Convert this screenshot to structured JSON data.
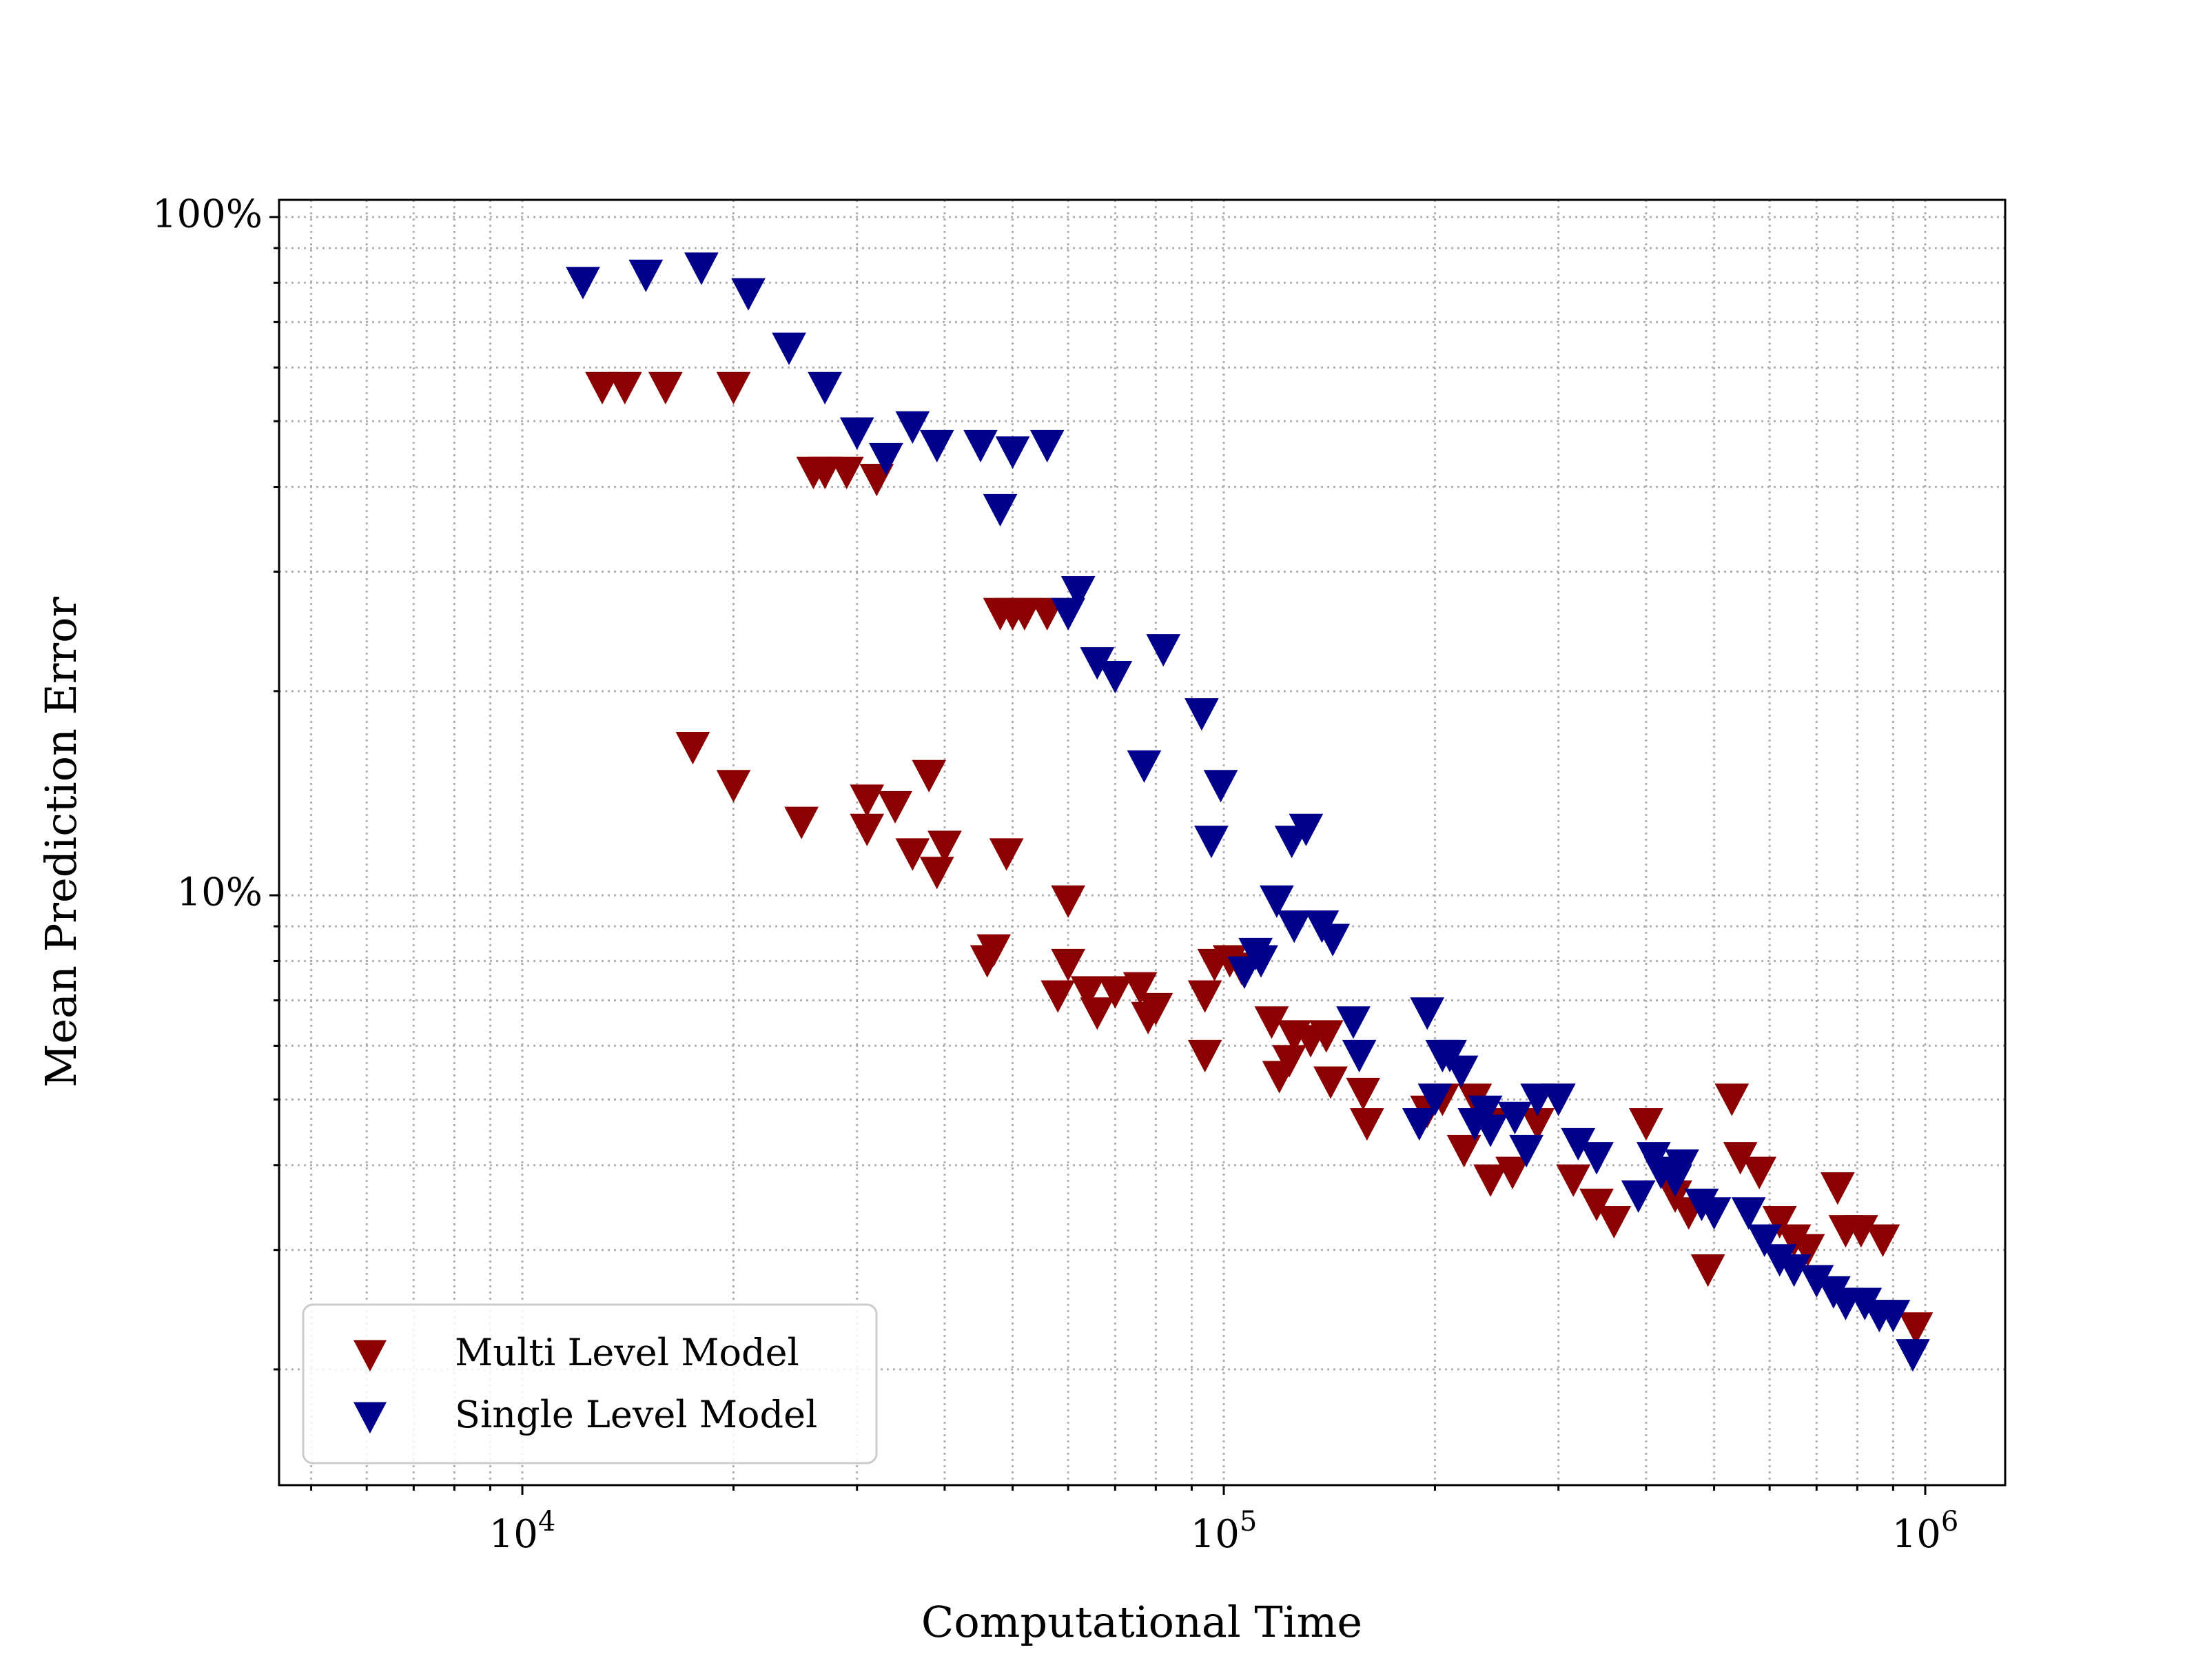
{
  "chart_data": {
    "type": "scatter",
    "title": "",
    "xlabel": "Computational Time",
    "ylabel": "Mean Prediction Error",
    "xscale": "log",
    "yscale": "log",
    "xlim": [
      4500,
      1300000
    ],
    "ylim": [
      0.0135,
      1.06
    ],
    "grid": "major and minor, dotted gray",
    "legend_position": "lower-left",
    "x_ticks": [
      {
        "value": 10000,
        "base": "10",
        "exp": "4"
      },
      {
        "value": 100000,
        "base": "10",
        "exp": "5"
      },
      {
        "value": 1000000,
        "base": "10",
        "exp": "6"
      }
    ],
    "y_ticks": [
      {
        "value": 0.1,
        "label": "10%"
      },
      {
        "value": 1.0,
        "label": "100%"
      }
    ],
    "marker": "triangle-down",
    "series": [
      {
        "name": "Multi Level Model",
        "color": "#8b0000",
        "points": [
          [
            13000,
            0.56
          ],
          [
            14000,
            0.56
          ],
          [
            16000,
            0.56
          ],
          [
            20000,
            0.56
          ],
          [
            26000,
            0.42
          ],
          [
            27000,
            0.42
          ],
          [
            29000,
            0.42
          ],
          [
            32000,
            0.41
          ],
          [
            48000,
            0.26
          ],
          [
            50000,
            0.26
          ],
          [
            52000,
            0.26
          ],
          [
            56000,
            0.26
          ],
          [
            17500,
            0.165
          ],
          [
            20000,
            0.145
          ],
          [
            25000,
            0.128
          ],
          [
            31000,
            0.138
          ],
          [
            34000,
            0.135
          ],
          [
            38000,
            0.15
          ],
          [
            31000,
            0.125
          ],
          [
            36000,
            0.115
          ],
          [
            40000,
            0.118
          ],
          [
            39000,
            0.108
          ],
          [
            49000,
            0.115
          ],
          [
            60000,
            0.098
          ],
          [
            47000,
            0.083
          ],
          [
            46000,
            0.08
          ],
          [
            60000,
            0.079
          ],
          [
            58000,
            0.071
          ],
          [
            64000,
            0.072
          ],
          [
            70000,
            0.072
          ],
          [
            76000,
            0.073
          ],
          [
            66000,
            0.067
          ],
          [
            78000,
            0.066
          ],
          [
            80000,
            0.068
          ],
          [
            94000,
            0.071
          ],
          [
            97000,
            0.079
          ],
          [
            102000,
            0.08
          ],
          [
            106000,
            0.078
          ],
          [
            94000,
            0.058
          ],
          [
            117000,
            0.065
          ],
          [
            126000,
            0.062
          ],
          [
            133000,
            0.061
          ],
          [
            124000,
            0.057
          ],
          [
            140000,
            0.062
          ],
          [
            120000,
            0.054
          ],
          [
            142000,
            0.053
          ],
          [
            158000,
            0.051
          ],
          [
            160000,
            0.046
          ],
          [
            195000,
            0.048
          ],
          [
            205000,
            0.05
          ],
          [
            228000,
            0.05
          ],
          [
            240000,
            0.046
          ],
          [
            220000,
            0.042
          ],
          [
            240000,
            0.038
          ],
          [
            258000,
            0.039
          ],
          [
            280000,
            0.046
          ],
          [
            300000,
            0.05
          ],
          [
            315000,
            0.038
          ],
          [
            340000,
            0.035
          ],
          [
            360000,
            0.033
          ],
          [
            400000,
            0.046
          ],
          [
            430000,
            0.039
          ],
          [
            440000,
            0.036
          ],
          [
            460000,
            0.034
          ],
          [
            490000,
            0.028
          ],
          [
            530000,
            0.05
          ],
          [
            545000,
            0.041
          ],
          [
            580000,
            0.039
          ],
          [
            620000,
            0.033
          ],
          [
            650000,
            0.031
          ],
          [
            680000,
            0.03
          ],
          [
            750000,
            0.037
          ],
          [
            770000,
            0.032
          ],
          [
            810000,
            0.032
          ],
          [
            870000,
            0.031
          ],
          [
            970000,
            0.023
          ]
        ]
      },
      {
        "name": "Single Level Model",
        "color": "#00008b",
        "points": [
          [
            12200,
            0.8
          ],
          [
            15000,
            0.82
          ],
          [
            18000,
            0.84
          ],
          [
            21000,
            0.77
          ],
          [
            24000,
            0.64
          ],
          [
            27000,
            0.56
          ],
          [
            30000,
            0.48
          ],
          [
            33000,
            0.44
          ],
          [
            36000,
            0.49
          ],
          [
            39000,
            0.46
          ],
          [
            45000,
            0.46
          ],
          [
            50000,
            0.45
          ],
          [
            56000,
            0.46
          ],
          [
            48000,
            0.37
          ],
          [
            62000,
            0.28
          ],
          [
            60000,
            0.26
          ],
          [
            66000,
            0.22
          ],
          [
            70000,
            0.21
          ],
          [
            82000,
            0.23
          ],
          [
            77000,
            0.155
          ],
          [
            93000,
            0.185
          ],
          [
            99000,
            0.145
          ],
          [
            96000,
            0.12
          ],
          [
            125000,
            0.12
          ],
          [
            131000,
            0.125
          ],
          [
            119000,
            0.098
          ],
          [
            126000,
            0.09
          ],
          [
            138000,
            0.09
          ],
          [
            143000,
            0.086
          ],
          [
            111000,
            0.082
          ],
          [
            107000,
            0.077
          ],
          [
            113000,
            0.08
          ],
          [
            153000,
            0.065
          ],
          [
            156000,
            0.058
          ],
          [
            195000,
            0.067
          ],
          [
            205000,
            0.058
          ],
          [
            210000,
            0.058
          ],
          [
            218000,
            0.055
          ],
          [
            200000,
            0.05
          ],
          [
            190000,
            0.046
          ],
          [
            228000,
            0.046
          ],
          [
            236000,
            0.048
          ],
          [
            240000,
            0.045
          ],
          [
            260000,
            0.047
          ],
          [
            280000,
            0.05
          ],
          [
            300000,
            0.05
          ],
          [
            270000,
            0.042
          ],
          [
            320000,
            0.043
          ],
          [
            340000,
            0.041
          ],
          [
            390000,
            0.036
          ],
          [
            410000,
            0.041
          ],
          [
            420000,
            0.039
          ],
          [
            440000,
            0.038
          ],
          [
            450000,
            0.04
          ],
          [
            480000,
            0.035
          ],
          [
            500000,
            0.034
          ],
          [
            560000,
            0.034
          ],
          [
            590000,
            0.031
          ],
          [
            620000,
            0.029
          ],
          [
            650000,
            0.028
          ],
          [
            700000,
            0.027
          ],
          [
            740000,
            0.026
          ],
          [
            770000,
            0.025
          ],
          [
            820000,
            0.025
          ],
          [
            860000,
            0.024
          ],
          [
            900000,
            0.024
          ],
          [
            960000,
            0.021
          ]
        ]
      }
    ]
  }
}
